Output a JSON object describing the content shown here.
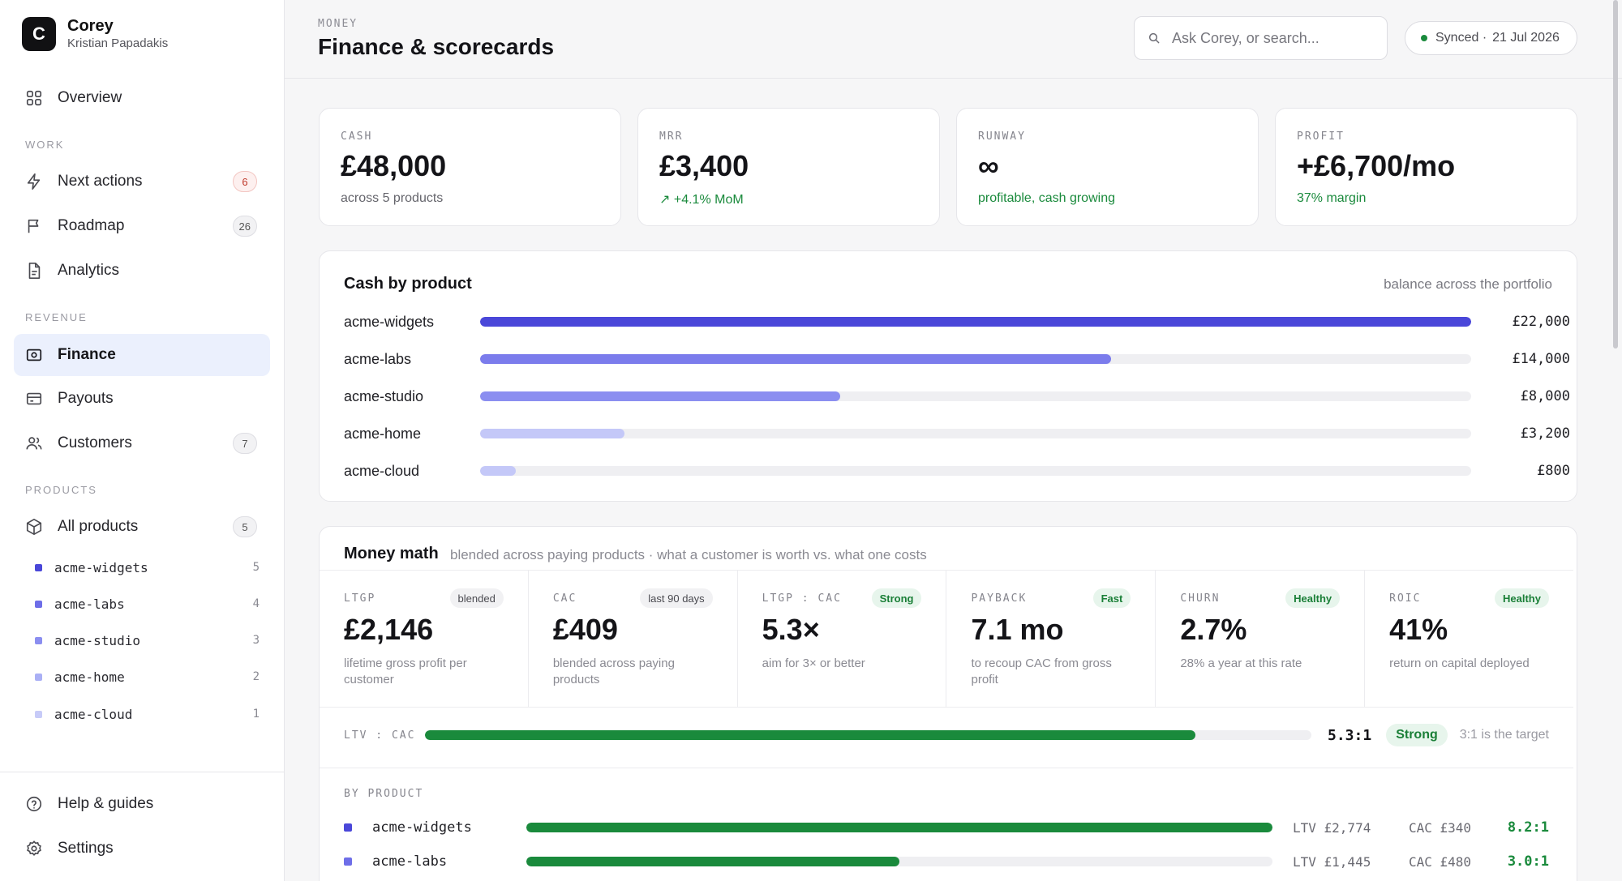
{
  "brand": {
    "logo_letter": "C",
    "name": "Corey",
    "user": "Kristian Papadakis"
  },
  "sidebar": {
    "overview": "Overview",
    "work_label": "WORK",
    "next_actions": {
      "label": "Next actions",
      "count": "6"
    },
    "roadmap": {
      "label": "Roadmap",
      "count": "26"
    },
    "analytics": "Analytics",
    "revenue_label": "REVENUE",
    "finance": "Finance",
    "payouts": "Payouts",
    "customers": {
      "label": "Customers",
      "count": "7"
    },
    "products_label": "PRODUCTS",
    "all_products": {
      "label": "All products",
      "count": "5"
    },
    "products": [
      {
        "name": "acme-widgets",
        "count": "5",
        "color": "#4a47d9"
      },
      {
        "name": "acme-labs",
        "count": "4",
        "color": "#6e6ee8"
      },
      {
        "name": "acme-studio",
        "count": "3",
        "color": "#8b8ef0"
      },
      {
        "name": "acme-home",
        "count": "2",
        "color": "#aab0f5"
      },
      {
        "name": "acme-cloud",
        "count": "1",
        "color": "#c7cbf8"
      }
    ],
    "help": "Help & guides",
    "settings": "Settings"
  },
  "header": {
    "eyebrow": "MONEY",
    "title": "Finance & scorecards",
    "search_placeholder": "Ask Corey, or search...",
    "sync_status": "Synced ·",
    "sync_date": "21 Jul 2026"
  },
  "kpis": [
    {
      "label": "CASH",
      "value": "£48,000",
      "sub": "across 5 products",
      "tone": "neutral"
    },
    {
      "label": "MRR",
      "value": "£3,400",
      "sub": "↗ +4.1% MoM",
      "tone": "green"
    },
    {
      "label": "RUNWAY",
      "value": "∞",
      "sub": "profitable, cash growing",
      "tone": "green"
    },
    {
      "label": "PROFIT",
      "value": "+£6,700/mo",
      "sub": "37% margin",
      "tone": "green"
    }
  ],
  "cash_by_product": {
    "title": "Cash by product",
    "note": "balance across the portfolio",
    "max": 22000,
    "rows": [
      {
        "name": "acme-widgets",
        "value": 22000,
        "label": "£22,000",
        "color": "#4a47d9"
      },
      {
        "name": "acme-labs",
        "value": 14000,
        "label": "£14,000",
        "color": "#7b7cec"
      },
      {
        "name": "acme-studio",
        "value": 8000,
        "label": "£8,000",
        "color": "#8b8ef0"
      },
      {
        "name": "acme-home",
        "value": 3200,
        "label": "£3,200",
        "color": "#c4c8f8"
      },
      {
        "name": "acme-cloud",
        "value": 800,
        "label": "£800",
        "color": "#c4c8f8"
      }
    ]
  },
  "money_math": {
    "title": "Money math",
    "note": "blended across paying products · what a customer is worth vs. what one costs",
    "metrics": [
      {
        "label": "LTGP",
        "badge": "blended",
        "badge_tone": "neutral",
        "value": "£2,146",
        "sub": "lifetime gross profit per customer"
      },
      {
        "label": "CAC",
        "badge": "last 90 days",
        "badge_tone": "neutral",
        "value": "£409",
        "sub": "blended across paying products"
      },
      {
        "label": "LTGP : CAC",
        "badge": "Strong",
        "badge_tone": "ok",
        "value": "5.3×",
        "sub": "aim for 3× or better"
      },
      {
        "label": "PAYBACK",
        "badge": "Fast",
        "badge_tone": "ok",
        "value": "7.1 mo",
        "sub": "to recoup CAC from gross profit"
      },
      {
        "label": "CHURN",
        "badge": "Healthy",
        "badge_tone": "ok",
        "value": "2.7%",
        "sub": "28% a year at this rate"
      },
      {
        "label": "ROIC",
        "badge": "Healthy",
        "badge_tone": "ok",
        "value": "41%",
        "sub": "return on capital deployed"
      }
    ],
    "ratio": {
      "label": "LTV : CAC",
      "value": 5.3,
      "scale_max": 6.1,
      "value_label": "5.3:1",
      "badge": "Strong",
      "target": "3:1 is the target"
    },
    "by_product_label": "BY PRODUCT",
    "by_product": [
      {
        "name": "acme-widgets",
        "color": "#4a47d9",
        "ratio": 8.2,
        "scale_max": 8.2,
        "ltv": "LTV £2,774",
        "cac": "CAC £340",
        "ratio_label": "8.2:1"
      },
      {
        "name": "acme-labs",
        "color": "#6e6ee8",
        "ratio": 3.0,
        "scale_max": 6.0,
        "ltv": "LTV £1,445",
        "cac": "CAC £480",
        "ratio_label": "3.0:1"
      }
    ]
  }
}
